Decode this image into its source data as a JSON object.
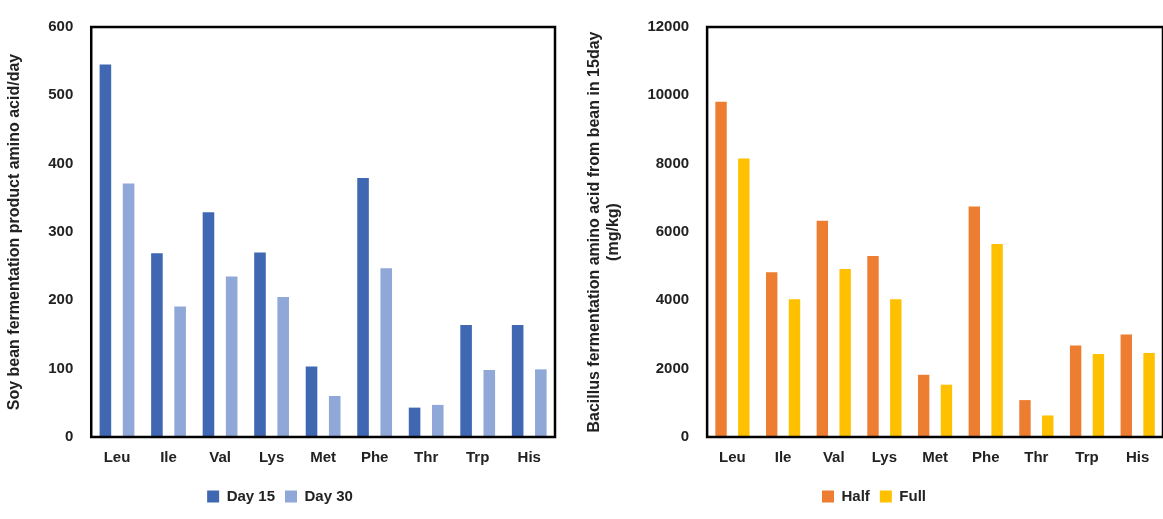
{
  "chart_data": [
    {
      "type": "bar",
      "ylabel": "Soy bean fermentation product amino acid/day",
      "categories": [
        "Leu",
        "Ile",
        "Val",
        "Lys",
        "Met",
        "Phe",
        "Thr",
        "Trp",
        "His"
      ],
      "series": [
        {
          "name": "Day 15",
          "color": "#4068b2",
          "values": [
            545,
            269,
            329,
            270,
            103,
            379,
            43,
            164,
            164
          ]
        },
        {
          "name": "Day 30",
          "color": "#8fa8d8",
          "values": [
            371,
            191,
            235,
            205,
            60,
            247,
            47,
            98,
            99
          ]
        }
      ],
      "ylim": [
        0,
        600
      ],
      "yticks": [
        0,
        100,
        200,
        300,
        400,
        500,
        600
      ],
      "grid": false,
      "legend": "bottom"
    },
    {
      "type": "bar",
      "ylabel": "Bacillus fermentation amino acid from bean in 15day\n(mg/kg)",
      "categories": [
        "Leu",
        "Ile",
        "Val",
        "Lys",
        "Met",
        "Phe",
        "Thr",
        "Trp",
        "His"
      ],
      "series": [
        {
          "name": "Half",
          "color": "#ed7d31",
          "values": [
            9810,
            4820,
            6330,
            5300,
            1820,
            6750,
            1080,
            2680,
            3000
          ]
        },
        {
          "name": "Full",
          "color": "#ffc000",
          "values": [
            8150,
            4030,
            4920,
            4030,
            1530,
            5650,
            630,
            2430,
            2460
          ]
        }
      ],
      "ylim": [
        0,
        12000
      ],
      "yticks": [
        0,
        2000,
        4000,
        6000,
        8000,
        10000,
        12000
      ],
      "grid": false,
      "legend": "bottom"
    }
  ]
}
